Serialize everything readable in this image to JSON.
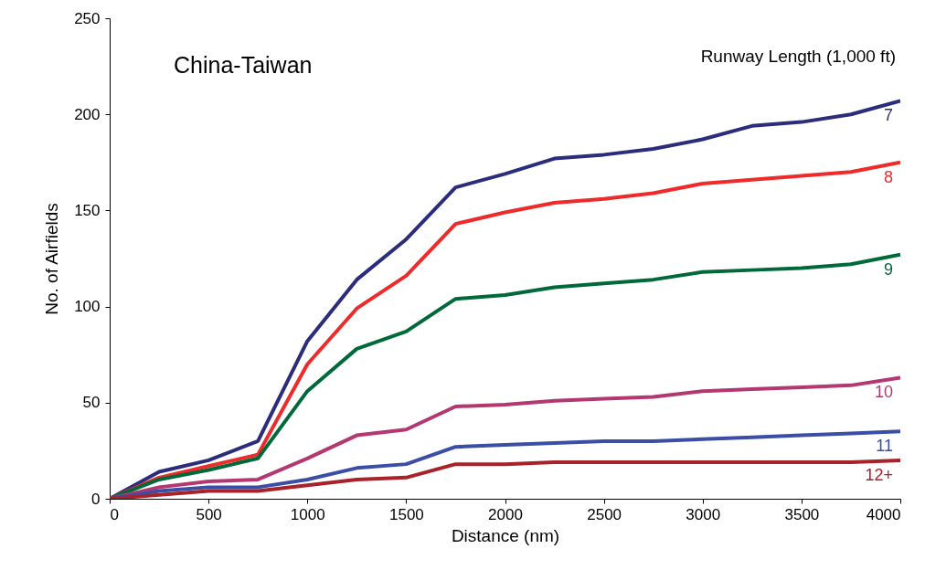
{
  "chart_data": {
    "type": "line",
    "title": "China-Taiwan",
    "legend_title": "Runway Length (1,000 ft)",
    "xlabel": "Distance (nm)",
    "ylabel": "No. of Airfields",
    "x": [
      0,
      250,
      500,
      750,
      1000,
      1250,
      1500,
      1750,
      2000,
      2250,
      2500,
      2750,
      3000,
      3250,
      3500,
      3750,
      4000
    ],
    "series": [
      {
        "name": "7",
        "color": "#2b2d7c",
        "values": [
          0,
          14,
          20,
          30,
          82,
          114,
          135,
          162,
          169,
          177,
          179,
          182,
          187,
          194,
          196,
          200,
          207
        ]
      },
      {
        "name": "8",
        "color": "#ee2a2a",
        "values": [
          0,
          11,
          17,
          23,
          70,
          99,
          116,
          143,
          149,
          154,
          156,
          159,
          164,
          166,
          168,
          170,
          175
        ]
      },
      {
        "name": "9",
        "color": "#00693a",
        "values": [
          0,
          10,
          15,
          21,
          56,
          78,
          87,
          104,
          106,
          110,
          112,
          114,
          118,
          119,
          120,
          122,
          127
        ]
      },
      {
        "name": "10",
        "color": "#b33771",
        "values": [
          0,
          6,
          9,
          10,
          21,
          33,
          36,
          48,
          49,
          51,
          52,
          53,
          56,
          57,
          58,
          59,
          63
        ]
      },
      {
        "name": "11",
        "color": "#3a4ea6",
        "values": [
          0,
          4,
          6,
          6,
          10,
          16,
          18,
          27,
          28,
          29,
          30,
          30,
          31,
          32,
          33,
          34,
          35
        ]
      },
      {
        "name": "12+",
        "color": "#a8222a",
        "values": [
          0,
          2,
          4,
          4,
          7,
          10,
          11,
          18,
          18,
          19,
          19,
          19,
          19,
          19,
          19,
          19,
          20
        ]
      }
    ],
    "xlim": [
      0,
      4000
    ],
    "xticks": [
      0,
      500,
      1000,
      1500,
      2000,
      2500,
      3000,
      3500,
      4000
    ],
    "ylim": [
      0,
      250
    ],
    "yticks": [
      0,
      50,
      100,
      150,
      200,
      250
    ],
    "grid": false,
    "legend": false,
    "marker": "none",
    "line_style": "solid"
  }
}
